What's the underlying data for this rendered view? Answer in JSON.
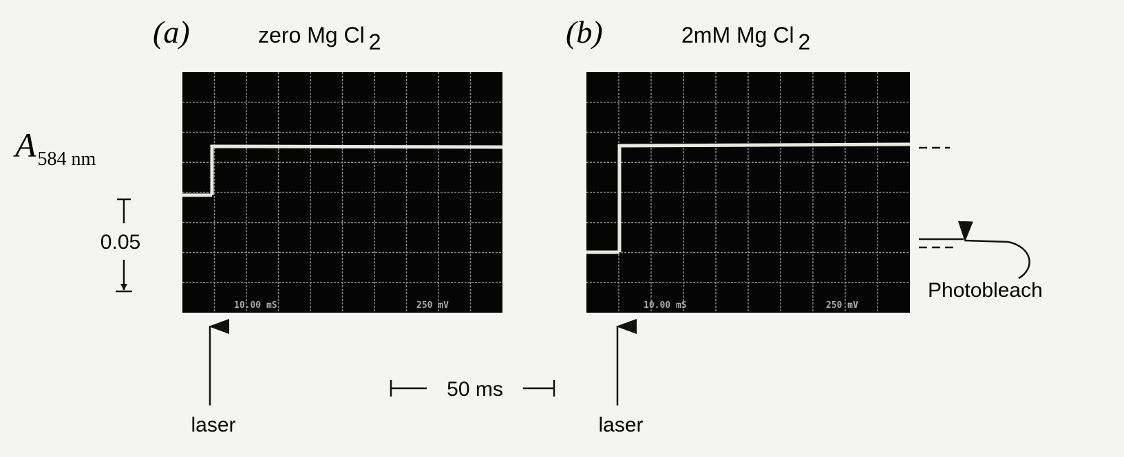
{
  "panels": [
    {
      "label": "(a)",
      "condition": "zero Mg Cl",
      "subscript": "2",
      "screen_time": "10.00 mS",
      "screen_volts": "250 mV",
      "marker": "laser"
    },
    {
      "label": "(b)",
      "condition": "2mM Mg Cl",
      "subscript": "2",
      "screen_time": "10.00 mS",
      "screen_volts": "250 mV",
      "marker": "laser"
    }
  ],
  "y_axis": {
    "symbol": "A",
    "subscript": "584 nm"
  },
  "scale_bars": {
    "absorbance": "0.05",
    "time": "50 ms"
  },
  "annotation": "Photobleach"
}
